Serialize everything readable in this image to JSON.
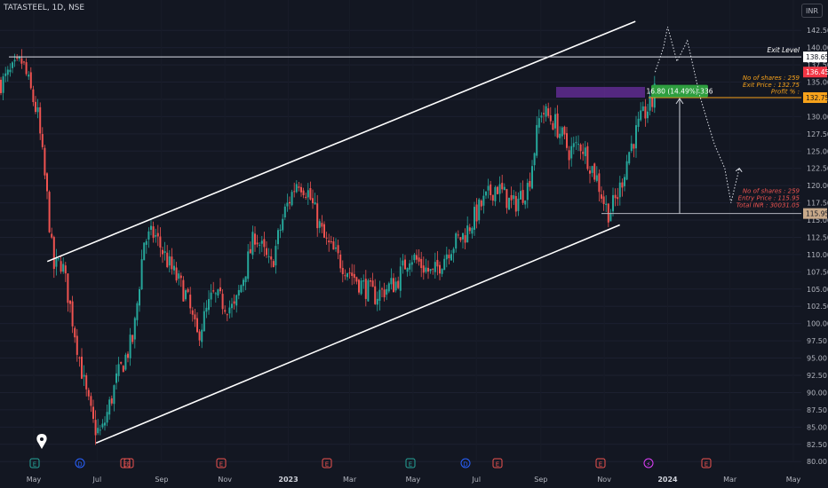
{
  "header": {
    "symbol": "TATASTEEL",
    "interval": "1D",
    "exchange": "NSE",
    "currency": "INR"
  },
  "chart_data": {
    "type": "candlestick",
    "y_ticks": [
      142.5,
      140.0,
      137.5,
      135.0,
      132.5,
      130.0,
      127.5,
      125.0,
      122.5,
      120.0,
      117.5,
      115.0,
      112.5,
      110.0,
      107.5,
      105.0,
      102.5,
      100.0,
      97.5,
      95.0,
      92.5,
      90.0,
      87.5,
      85.0,
      82.5,
      80.0
    ],
    "ylim": [
      79.5,
      146.5
    ],
    "x_ticks": [
      "May",
      "Jul",
      "Sep",
      "Nov",
      "2023",
      "Mar",
      "May",
      "Jul",
      "Sep",
      "Nov",
      "2024",
      "Mar",
      "May"
    ],
    "price_labels": [
      {
        "value": "138.65",
        "style": "white"
      },
      {
        "value": "136.45",
        "style": "red"
      },
      {
        "value": "132.75",
        "style": "orange"
      },
      {
        "value": "115.95",
        "style": "tan"
      }
    ],
    "annotations": {
      "exit_level": "Exit Level",
      "exit_note_1": "No of shares : 259",
      "exit_note_2": "Exit Price    : 132.75",
      "exit_note_3": "Profit %         :",
      "entry_note_1": "No of shares : 259",
      "entry_note_2": "Entry Price : 115.95",
      "entry_note_3": "Total INR   : 30031.05",
      "measure_label": "16.80 (14.49%) 336"
    },
    "channel": {
      "upper": [
        [
          "2022-05-14",
          109.0
        ],
        [
          "2023-12-01",
          143.8
        ]
      ],
      "lower": [
        [
          "2022-06-30",
          82.7
        ],
        [
          "2023-11-16",
          114.3
        ]
      ]
    },
    "horizontal_levels": {
      "exit_level": 138.65,
      "exit_price": 132.75,
      "entry_price": 115.95
    },
    "event_markers": [
      "E",
      "D",
      "E",
      "E",
      "E",
      "E",
      "D",
      "E",
      "E",
      "lightning",
      "E"
    ],
    "waypoints": [
      [
        "2022-04-01",
        135
      ],
      [
        "2022-04-20",
        138
      ],
      [
        "2022-05-05",
        130
      ],
      [
        "2022-05-14",
        118
      ],
      [
        "2022-05-20",
        108
      ],
      [
        "2022-05-28",
        109
      ],
      [
        "2022-06-08",
        100
      ],
      [
        "2022-06-20",
        90
      ],
      [
        "2022-06-28",
        85
      ],
      [
        "2022-07-05",
        84
      ],
      [
        "2022-07-20",
        92
      ],
      [
        "2022-08-05",
        98
      ],
      [
        "2022-08-15",
        112
      ],
      [
        "2022-08-25",
        113
      ],
      [
        "2022-09-10",
        108
      ],
      [
        "2022-09-25",
        104
      ],
      [
        "2022-10-05",
        98
      ],
      [
        "2022-10-20",
        104
      ],
      [
        "2022-11-10",
        102
      ],
      [
        "2022-11-30",
        113
      ],
      [
        "2022-12-15",
        108
      ],
      [
        "2022-12-28",
        116
      ],
      [
        "2023-01-10",
        121
      ],
      [
        "2023-01-20",
        119
      ],
      [
        "2023-02-05",
        112
      ],
      [
        "2023-02-20",
        109
      ],
      [
        "2023-03-10",
        106
      ],
      [
        "2023-03-25",
        104
      ],
      [
        "2023-04-15",
        106
      ],
      [
        "2023-04-28",
        110
      ],
      [
        "2023-05-20",
        107
      ],
      [
        "2023-06-05",
        111
      ],
      [
        "2023-06-20",
        113
      ],
      [
        "2023-07-05",
        117
      ],
      [
        "2023-07-20",
        120
      ],
      [
        "2023-08-05",
        117
      ],
      [
        "2023-08-20",
        120
      ],
      [
        "2023-09-01",
        131
      ],
      [
        "2023-09-15",
        129
      ],
      [
        "2023-09-28",
        125
      ],
      [
        "2023-10-10",
        126
      ],
      [
        "2023-10-25",
        121
      ],
      [
        "2023-11-02",
        117
      ],
      [
        "2023-11-06",
        116
      ],
      [
        "2023-11-15",
        119
      ],
      [
        "2023-11-25",
        125
      ],
      [
        "2023-12-05",
        129
      ],
      [
        "2023-12-12",
        131
      ],
      [
        "2023-12-18",
        132
      ],
      [
        "2023-12-20",
        136.45
      ]
    ],
    "projection": [
      [
        "2023-12-20",
        136.45
      ],
      [
        "2023-12-28",
        140
      ],
      [
        "2024-01-01",
        143
      ],
      [
        "2024-01-10",
        138
      ],
      [
        "2024-01-20",
        141
      ],
      [
        "2024-02-01",
        133
      ],
      [
        "2024-02-15",
        126
      ],
      [
        "2024-02-25",
        122.5
      ],
      [
        "2024-03-02",
        117.5
      ],
      [
        "2024-03-10",
        122.5
      ]
    ]
  }
}
